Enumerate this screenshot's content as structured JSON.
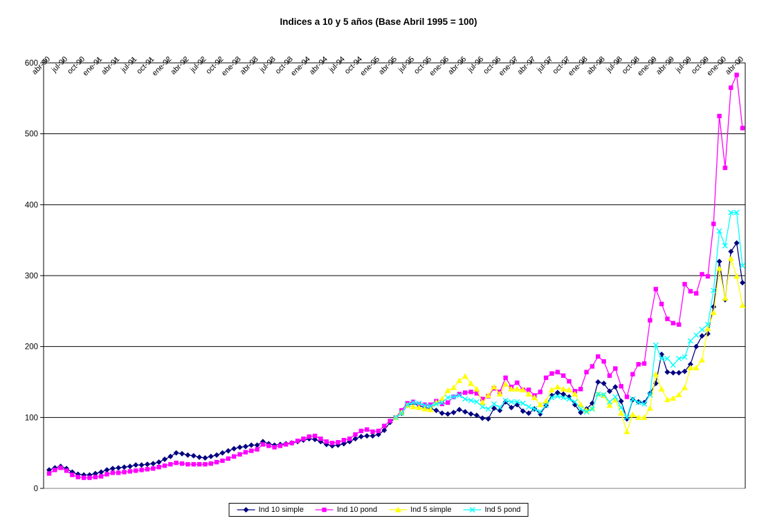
{
  "title": "Indices a 10 y 5 años (Base Abril 1995 = 100)",
  "colors": {
    "background": "#FFFFFF",
    "gridline": "#000000",
    "zero_line": "#999999",
    "axis": "#000000",
    "ind10_simple": "#000080",
    "ind10_pond": "#FF00FF",
    "ind5_simple": "#FFFF00",
    "ind5_pond": "#00FFFF"
  },
  "legend": {
    "items": [
      {
        "label": "Ind 10 simple",
        "marker": "diamond",
        "color": "#000080"
      },
      {
        "label": "Ind 10 pond",
        "marker": "square",
        "color": "#FF00FF"
      },
      {
        "label": "Ind 5 simple",
        "marker": "triangle",
        "color": "#FFFF00"
      },
      {
        "label": "Ind 5 pond",
        "marker": "x",
        "color": "#00FFFF"
      }
    ]
  },
  "chart_data": {
    "type": "line",
    "title": "Indices a 10 y 5 años (Base Abril 1995 = 100)",
    "xlabel": "",
    "ylabel": "",
    "ylim": [
      0,
      600
    ],
    "y_ticks": [
      0,
      100,
      200,
      300,
      400,
      500,
      600
    ],
    "grid": "horizontal lines every 100, zero line gray",
    "legend_position": "bottom-center",
    "x_unit": "monthly categories, labels shown every 3 months, rotated 45deg at top of plot",
    "x_months_total": 121,
    "x_first_month": "abr-90",
    "x_last_month": "abr-00",
    "x_tick_labels": [
      "abr-90",
      "jul-90",
      "oct-90",
      "ene-91",
      "abr-91",
      "jul-91",
      "oct-91",
      "ene-92",
      "abr-92",
      "jul-92",
      "oct-92",
      "ene-93",
      "abr-93",
      "jul-93",
      "oct-93",
      "ene-94",
      "abr-94",
      "jul-94",
      "oct-94",
      "ene-95",
      "abr-95",
      "jul-95",
      "oct-95",
      "ene-96",
      "abr-96",
      "jul-96",
      "oct-96",
      "ene-97",
      "abr-97",
      "jul-97",
      "oct-97",
      "ene-98",
      "abr-98",
      "jul-98",
      "oct-98",
      "ene-99",
      "abr-99",
      "jul-99",
      "oct-99",
      "ene-00",
      "abr-00"
    ],
    "x_tick_interval_months": 3,
    "series": [
      {
        "name": "Ind 10 simple",
        "color": "#000080",
        "marker": "diamond",
        "start_index": 0,
        "start_month": "abr-90",
        "values": [
          26,
          29,
          31,
          28,
          23,
          20,
          19,
          19,
          21,
          23,
          26,
          28,
          29,
          30,
          31,
          33,
          33,
          34,
          35,
          37,
          41,
          45,
          50,
          49,
          47,
          46,
          44,
          43,
          45,
          47,
          50,
          53,
          56,
          58,
          59,
          61,
          61,
          66,
          63,
          61,
          62,
          63,
          64,
          66,
          68,
          70,
          69,
          66,
          62,
          60,
          61,
          63,
          66,
          70,
          73,
          74,
          74,
          76,
          82,
          93,
          100,
          106,
          117,
          120,
          117,
          114,
          113,
          110,
          106,
          105,
          107,
          111,
          108,
          105,
          103,
          99,
          98,
          113,
          110,
          122,
          114,
          118,
          109,
          106,
          112,
          105,
          117,
          131,
          135,
          133,
          129,
          118,
          107,
          112,
          120,
          150,
          148,
          137,
          143,
          123,
          98,
          125,
          122,
          121,
          134,
          148,
          189,
          164,
          163,
          163,
          165,
          175,
          200,
          215,
          218,
          256,
          320,
          266,
          334,
          346,
          290
        ]
      },
      {
        "name": "Ind 10 pond",
        "color": "#FF00FF",
        "marker": "square",
        "start_index": 0,
        "start_month": "abr-90",
        "values": [
          21,
          26,
          29,
          25,
          19,
          16,
          15,
          15,
          16,
          17,
          20,
          22,
          22,
          23,
          24,
          25,
          26,
          27,
          28,
          30,
          32,
          34,
          36,
          35,
          34,
          34,
          34,
          34,
          35,
          37,
          39,
          42,
          45,
          48,
          51,
          53,
          55,
          62,
          60,
          58,
          60,
          62,
          64,
          67,
          70,
          73,
          74,
          70,
          66,
          64,
          65,
          68,
          70,
          76,
          81,
          83,
          80,
          81,
          88,
          95,
          100,
          110,
          120,
          122,
          119,
          118,
          118,
          123,
          119,
          121,
          129,
          133,
          135,
          136,
          134,
          126,
          130,
          141,
          136,
          156,
          143,
          149,
          139,
          139,
          131,
          136,
          156,
          162,
          164,
          159,
          151,
          137,
          140,
          164,
          172,
          186,
          179,
          159,
          169,
          144,
          129,
          161,
          175,
          176,
          237,
          281,
          260,
          239,
          233,
          231,
          288,
          278,
          275,
          302,
          299,
          373,
          525,
          452,
          565,
          583,
          508
        ]
      },
      {
        "name": "Ind 5 simple",
        "color": "#FFFF00",
        "marker": "triangle",
        "start_index": 60,
        "start_month": "abr-95",
        "values": [
          100,
          107,
          117,
          115,
          114,
          112,
          111,
          121,
          126,
          138,
          142,
          152,
          158,
          148,
          140,
          121,
          131,
          143,
          133,
          147,
          140,
          140,
          139,
          133,
          128,
          118,
          123,
          139,
          143,
          140,
          139,
          133,
          118,
          110,
          113,
          133,
          131,
          117,
          125,
          106,
          80,
          104,
          100,
          100,
          113,
          161,
          140,
          125,
          127,
          132,
          142,
          170,
          170,
          181,
          225,
          248,
          310,
          268,
          324,
          299,
          258
        ]
      },
      {
        "name": "Ind 5 pond",
        "color": "#00FFFF",
        "marker": "x",
        "start_index": 60,
        "start_month": "abr-95",
        "values": [
          100,
          106,
          118,
          121,
          120,
          117,
          116,
          119,
          121,
          128,
          129,
          131,
          126,
          124,
          122,
          115,
          112,
          119,
          114,
          124,
          122,
          122,
          120,
          115,
          112,
          108,
          117,
          128,
          130,
          128,
          126,
          122,
          112,
          108,
          112,
          133,
          132,
          122,
          129,
          114,
          100,
          126,
          121,
          119,
          132,
          202,
          183,
          183,
          174,
          183,
          185,
          208,
          216,
          224,
          231,
          279,
          363,
          342,
          389,
          389,
          314
        ]
      }
    ]
  }
}
